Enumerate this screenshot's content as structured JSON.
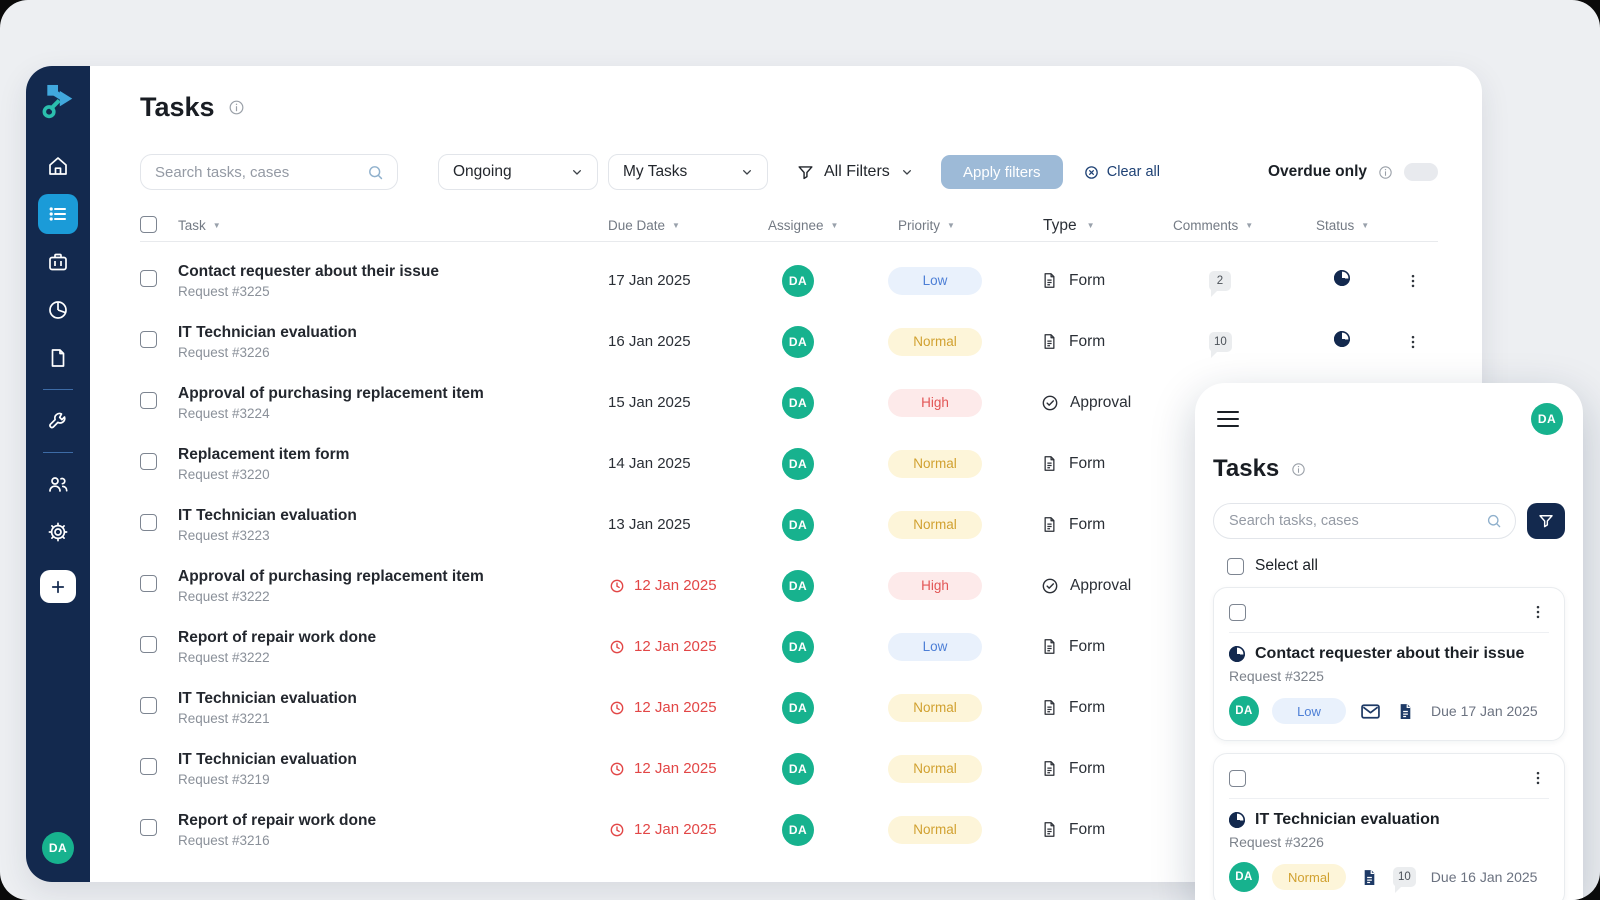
{
  "colors": {
    "background": "#edeff2",
    "sidebar": "#13294e",
    "accent_active": "#1b9bd8",
    "avatar": "#17b28e",
    "navy_icon": "#1e3a66",
    "overdue_red": "#e24646",
    "apply_button": "#9dbad7",
    "priority_low_bg": "#e9f1fc",
    "priority_low_text": "#4d7fd6",
    "priority_normal_bg": "#fdf5d9",
    "priority_normal_text": "#d1a130",
    "priority_high_bg": "#fdeaea",
    "priority_high_text": "#e25555"
  },
  "sidebar": {
    "icons": [
      "logo",
      "home",
      "task-list (active)",
      "briefcase",
      "pie-chart",
      "document",
      "wrench",
      "users",
      "settings",
      "add"
    ],
    "avatar": "DA"
  },
  "main": {
    "title": "Tasks",
    "filters": {
      "search_placeholder": "Search tasks, cases",
      "status_dropdown": "Ongoing",
      "scope_dropdown": "My Tasks",
      "all_filters_label": "All Filters",
      "apply_button": "Apply filters",
      "clear_all": "Clear all",
      "overdue_label": "Overdue only",
      "overdue_toggle_on": false
    }
  },
  "table": {
    "columns": [
      "Task",
      "Due Date",
      "Assignee",
      "Priority",
      "Type",
      "Comments",
      "Status"
    ],
    "rows": [
      {
        "title": "Contact requester about their issue",
        "request": "Request #3225",
        "due": "17 Jan 2025",
        "overdue": false,
        "assignee": "DA",
        "priority": "Low",
        "type": "Form",
        "type_icon": "form",
        "comments": "2",
        "status": true,
        "menu": true
      },
      {
        "title": "IT Technician evaluation",
        "request": "Request #3226",
        "due": "16 Jan 2025",
        "overdue": false,
        "assignee": "DA",
        "priority": "Normal",
        "type": "Form",
        "type_icon": "form",
        "comments": "10",
        "status": true,
        "menu": true
      },
      {
        "title": "Approval of purchasing replacement item",
        "request": "Request #3224",
        "due": "15 Jan 2025",
        "overdue": false,
        "assignee": "DA",
        "priority": "High",
        "type": "Approval",
        "type_icon": "approval",
        "comments": null,
        "status": false,
        "menu": false
      },
      {
        "title": "Replacement item form",
        "request": "Request #3220",
        "due": "14 Jan 2025",
        "overdue": false,
        "assignee": "DA",
        "priority": "Normal",
        "type": "Form",
        "type_icon": "form",
        "comments": null,
        "status": false,
        "menu": false
      },
      {
        "title": "IT Technician evaluation",
        "request": "Request #3223",
        "due": "13 Jan 2025",
        "overdue": false,
        "assignee": "DA",
        "priority": "Normal",
        "type": "Form",
        "type_icon": "form",
        "comments": null,
        "status": false,
        "menu": false
      },
      {
        "title": "Approval of purchasing replacement item",
        "request": "Request #3222",
        "due": "12 Jan 2025",
        "overdue": true,
        "assignee": "DA",
        "priority": "High",
        "type": "Approval",
        "type_icon": "approval",
        "comments": null,
        "status": false,
        "menu": false
      },
      {
        "title": "Report of repair work done",
        "request": "Request #3222",
        "due": "12 Jan 2025",
        "overdue": true,
        "assignee": "DA",
        "priority": "Low",
        "type": "Form",
        "type_icon": "form",
        "comments": null,
        "status": false,
        "menu": false
      },
      {
        "title": "IT Technician evaluation",
        "request": "Request #3221",
        "due": "12 Jan 2025",
        "overdue": true,
        "assignee": "DA",
        "priority": "Normal",
        "type": "Form",
        "type_icon": "form",
        "comments": null,
        "status": false,
        "menu": false
      },
      {
        "title": "IT Technician evaluation",
        "request": "Request #3219",
        "due": "12 Jan 2025",
        "overdue": true,
        "assignee": "DA",
        "priority": "Normal",
        "type": "Form",
        "type_icon": "form",
        "comments": null,
        "status": false,
        "menu": false
      },
      {
        "title": "Report of repair work done",
        "request": "Request #3216",
        "due": "12 Jan 2025",
        "overdue": true,
        "assignee": "DA",
        "priority": "Normal",
        "type": "Form",
        "type_icon": "form",
        "comments": null,
        "status": false,
        "menu": false
      }
    ]
  },
  "overlay": {
    "title": "Tasks",
    "avatar": "DA",
    "search_placeholder": "Search tasks, cases",
    "select_all_label": "Select all",
    "cards": [
      {
        "title": "Contact requester about their issue",
        "request": "Request #3225",
        "assignee": "DA",
        "priority": "Low",
        "has_mail": true,
        "has_doc": true,
        "comments": null,
        "due": "Due 17 Jan 2025"
      },
      {
        "title": "IT Technician evaluation",
        "request": "Request #3226",
        "assignee": "DA",
        "priority": "Normal",
        "has_mail": false,
        "has_doc": true,
        "comments": "10",
        "due": "Due 16 Jan 2025"
      }
    ]
  }
}
